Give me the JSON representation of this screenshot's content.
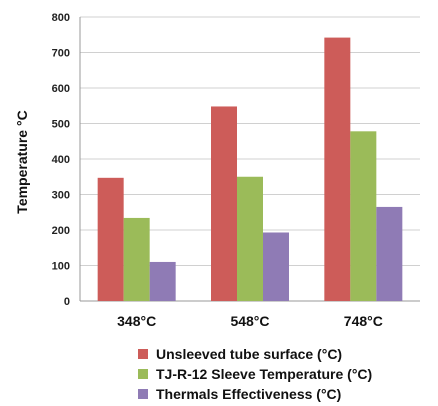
{
  "chart_data": {
    "type": "bar",
    "ylabel": "Temperature °C",
    "xlabel": "",
    "ylim": [
      0,
      800
    ],
    "yticks": [
      "0",
      "100",
      "200",
      "300",
      "400",
      "500",
      "600",
      "700",
      "800"
    ],
    "categories": [
      "348°C",
      "548°C",
      "748°C"
    ],
    "grid": true,
    "legend_position": "bottom",
    "series": [
      {
        "name": "Unsleeved tube surface (°C)",
        "color": "#cd5c59",
        "values": [
          347,
          548,
          742
        ]
      },
      {
        "name": "TJ-R-12 Sleeve Temperature (°C)",
        "color": "#9bbb59",
        "values": [
          234,
          350,
          478
        ]
      },
      {
        "name": "Thermals Effectiveness (°C)",
        "color": "#8f7bb5",
        "values": [
          110,
          193,
          265
        ]
      }
    ]
  }
}
